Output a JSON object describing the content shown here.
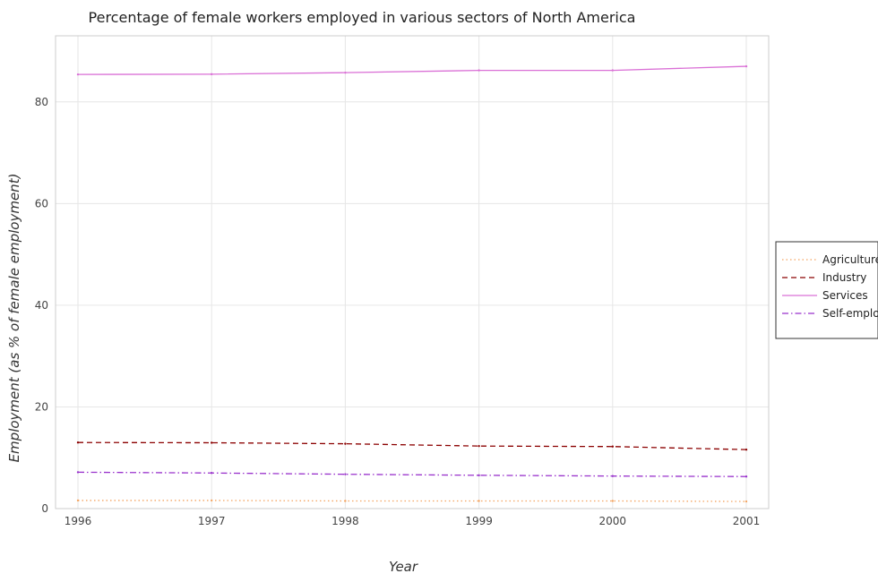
{
  "chart_data": {
    "type": "line",
    "title": "Percentage of female workers employed in various sectors of North America",
    "xlabel": "Year",
    "ylabel": "Employment (as % of female employment)",
    "x": [
      "1996",
      "1997",
      "1998",
      "1999",
      "2000",
      "2001"
    ],
    "ylim": [
      0,
      93
    ],
    "yticks": [
      0,
      20,
      40,
      60,
      80
    ],
    "grid": true,
    "legend_position": "right",
    "series": [
      {
        "name": "Agriculture",
        "color": "#f4a460",
        "dash": "dotted",
        "values": [
          1.6,
          1.6,
          1.5,
          1.5,
          1.5,
          1.4
        ]
      },
      {
        "name": "Industry",
        "color": "#8b0000",
        "dash": "dashed",
        "values": [
          13.0,
          12.95,
          12.75,
          12.3,
          12.2,
          11.6
        ]
      },
      {
        "name": "Services",
        "color": "#da70d6",
        "dash": "solid",
        "values": [
          85.4,
          85.45,
          85.75,
          86.2,
          86.2,
          87.0
        ]
      },
      {
        "name": "Self-employed",
        "color": "#9932cc",
        "dash": "dashdot",
        "values": [
          7.15,
          7.0,
          6.75,
          6.55,
          6.4,
          6.3
        ]
      }
    ]
  }
}
